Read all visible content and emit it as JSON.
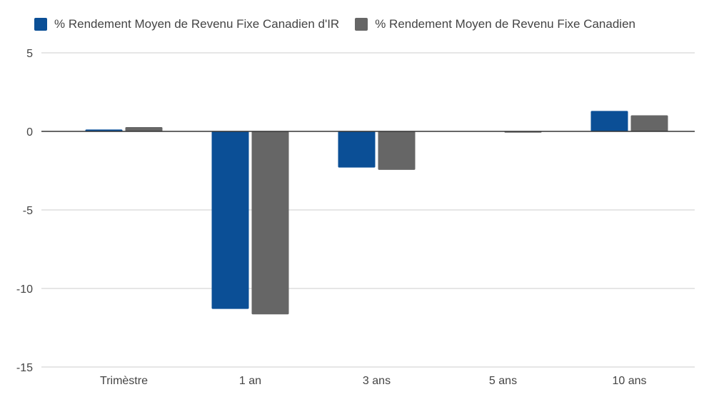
{
  "chart_data": {
    "type": "bar",
    "categories": [
      "Trimèstre",
      "1 an",
      "3 ans",
      "5 ans",
      "10 ans"
    ],
    "series": [
      {
        "name": "% Rendement Moyen de Revenu Fixe Canadien d'IR",
        "color": "#0b4f96",
        "values": [
          0.12,
          -11.3,
          -2.3,
          0.0,
          1.3
        ]
      },
      {
        "name": "% Rendement Moyen de Revenu Fixe Canadien",
        "color": "#666666",
        "values": [
          0.27,
          -11.65,
          -2.45,
          -0.08,
          1.02
        ]
      }
    ],
    "ylim": [
      -15,
      5
    ],
    "yticks": [
      5,
      0,
      -5,
      -10,
      -15
    ],
    "legend": "top-left",
    "grid": true
  }
}
